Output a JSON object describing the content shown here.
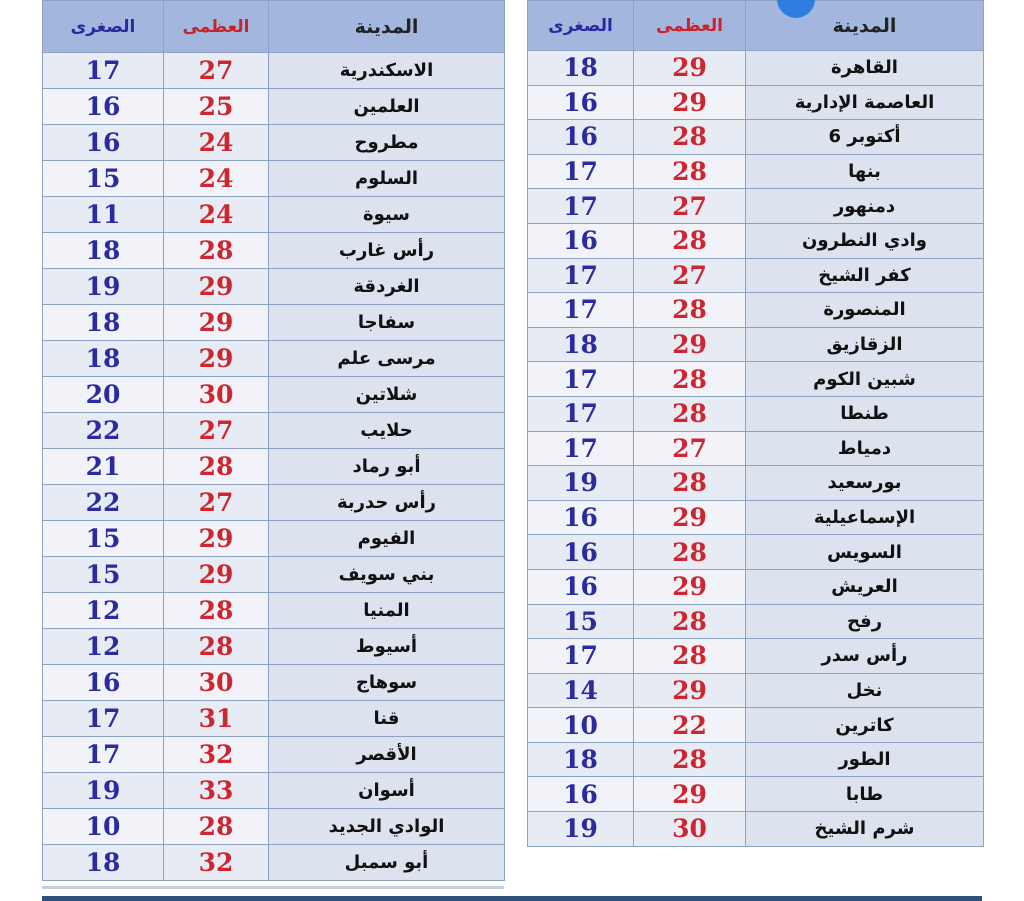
{
  "headers": {
    "city": "المدينة",
    "max": "العظمى",
    "min": "الصغرى"
  },
  "colors": {
    "max": "#cc2630",
    "min": "#2b2ba0",
    "header": "#a3b7de"
  },
  "left_table": [
    {
      "city": "الاسكندرية",
      "max": "27",
      "min": "17"
    },
    {
      "city": "العلمين",
      "max": "25",
      "min": "16"
    },
    {
      "city": "مطروح",
      "max": "24",
      "min": "16"
    },
    {
      "city": "السلوم",
      "max": "24",
      "min": "15"
    },
    {
      "city": "سيوة",
      "max": "24",
      "min": "11"
    },
    {
      "city": "رأس غارب",
      "max": "28",
      "min": "18"
    },
    {
      "city": "الغردقة",
      "max": "29",
      "min": "19"
    },
    {
      "city": "سفاجا",
      "max": "29",
      "min": "18"
    },
    {
      "city": "مرسى علم",
      "max": "29",
      "min": "18"
    },
    {
      "city": "شلاتين",
      "max": "30",
      "min": "20"
    },
    {
      "city": "حلايب",
      "max": "27",
      "min": "22"
    },
    {
      "city": "أبو رماد",
      "max": "28",
      "min": "21"
    },
    {
      "city": "رأس حدربة",
      "max": "27",
      "min": "22"
    },
    {
      "city": "الفيوم",
      "max": "29",
      "min": "15"
    },
    {
      "city": "بني سويف",
      "max": "29",
      "min": "15"
    },
    {
      "city": "المنيا",
      "max": "28",
      "min": "12"
    },
    {
      "city": "أسيوط",
      "max": "28",
      "min": "12"
    },
    {
      "city": "سوهاج",
      "max": "30",
      "min": "16"
    },
    {
      "city": "قنا",
      "max": "31",
      "min": "17"
    },
    {
      "city": "الأقصر",
      "max": "32",
      "min": "17"
    },
    {
      "city": "أسوان",
      "max": "33",
      "min": "19"
    },
    {
      "city": "الوادي الجديد",
      "max": "28",
      "min": "10"
    },
    {
      "city": "أبو سمبل",
      "max": "32",
      "min": "18"
    }
  ],
  "right_table": [
    {
      "city": "القاهرة",
      "max": "29",
      "min": "18"
    },
    {
      "city": "العاصمة الإدارية",
      "max": "29",
      "min": "16"
    },
    {
      "city": "6 أكتوبر",
      "max": "28",
      "min": "16"
    },
    {
      "city": "بنها",
      "max": "28",
      "min": "17"
    },
    {
      "city": "دمنهور",
      "max": "27",
      "min": "17"
    },
    {
      "city": "وادي النطرون",
      "max": "28",
      "min": "16"
    },
    {
      "city": "كفر الشيخ",
      "max": "27",
      "min": "17"
    },
    {
      "city": "المنصورة",
      "max": "28",
      "min": "17"
    },
    {
      "city": "الزقازيق",
      "max": "29",
      "min": "18"
    },
    {
      "city": "شبين الكوم",
      "max": "28",
      "min": "17"
    },
    {
      "city": "طنطا",
      "max": "28",
      "min": "17"
    },
    {
      "city": "دمياط",
      "max": "27",
      "min": "17"
    },
    {
      "city": "بورسعيد",
      "max": "28",
      "min": "19"
    },
    {
      "city": "الإسماعيلية",
      "max": "29",
      "min": "16"
    },
    {
      "city": "السويس",
      "max": "28",
      "min": "16"
    },
    {
      "city": "العريش",
      "max": "29",
      "min": "16"
    },
    {
      "city": "رفح",
      "max": "28",
      "min": "15"
    },
    {
      "city": "رأس سدر",
      "max": "28",
      "min": "17"
    },
    {
      "city": "نخل",
      "max": "29",
      "min": "14"
    },
    {
      "city": "كاترين",
      "max": "22",
      "min": "10"
    },
    {
      "city": "الطور",
      "max": "28",
      "min": "18"
    },
    {
      "city": "طابا",
      "max": "29",
      "min": "16"
    },
    {
      "city": "شرم الشيخ",
      "max": "30",
      "min": "19"
    }
  ]
}
